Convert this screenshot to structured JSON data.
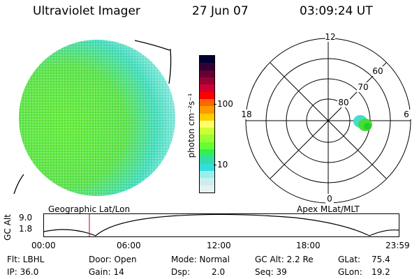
{
  "header": {
    "title": "Ultraviolet Imager",
    "date": "27 Jun 07",
    "time": "03:09:24 UT"
  },
  "colorbar": {
    "unit_label": "photon cm⁻²s⁻¹",
    "ticks": [
      "100",
      "10"
    ],
    "colors": [
      "#000033",
      "#330033",
      "#660033",
      "#990033",
      "#cc0033",
      "#ff0000",
      "#ff6600",
      "#ff9900",
      "#ffcc00",
      "#ffff66",
      "#ccff33",
      "#99ff33",
      "#66ff33",
      "#33ee55",
      "#33ddaa",
      "#33dddd",
      "#99eeee",
      "#cceeee",
      "#e6f2f2"
    ]
  },
  "polar": {
    "clock_labels": {
      "top": "12",
      "left": "18",
      "right": "6",
      "bottom": "0"
    },
    "lat_labels": [
      "60",
      "70",
      "80"
    ]
  },
  "timeline": {
    "left_label": "Geographic Lat/Lon",
    "right_label": "Apex  MLat/MLT",
    "axis_title": "GC Alt",
    "y_ticks": [
      "9.0",
      "1.8"
    ],
    "x_ticks": [
      "00:00",
      "06:00",
      "12:00",
      "18:00",
      "23:59"
    ]
  },
  "footer": {
    "flt": "Flt: LBHL",
    "door": "Door: Open",
    "mode": "Mode: Normal",
    "gcalt": "GC Alt: 2.2 Re",
    "glat": "GLat:",
    "glat_val": "75.4",
    "ip": "IP: 36.0",
    "gain": "Gain: 14",
    "dsp": "Dsp:",
    "dsp_val": "2.0",
    "seq": "Seq: 39",
    "glon": "GLon:",
    "glon_val": "19.2"
  }
}
